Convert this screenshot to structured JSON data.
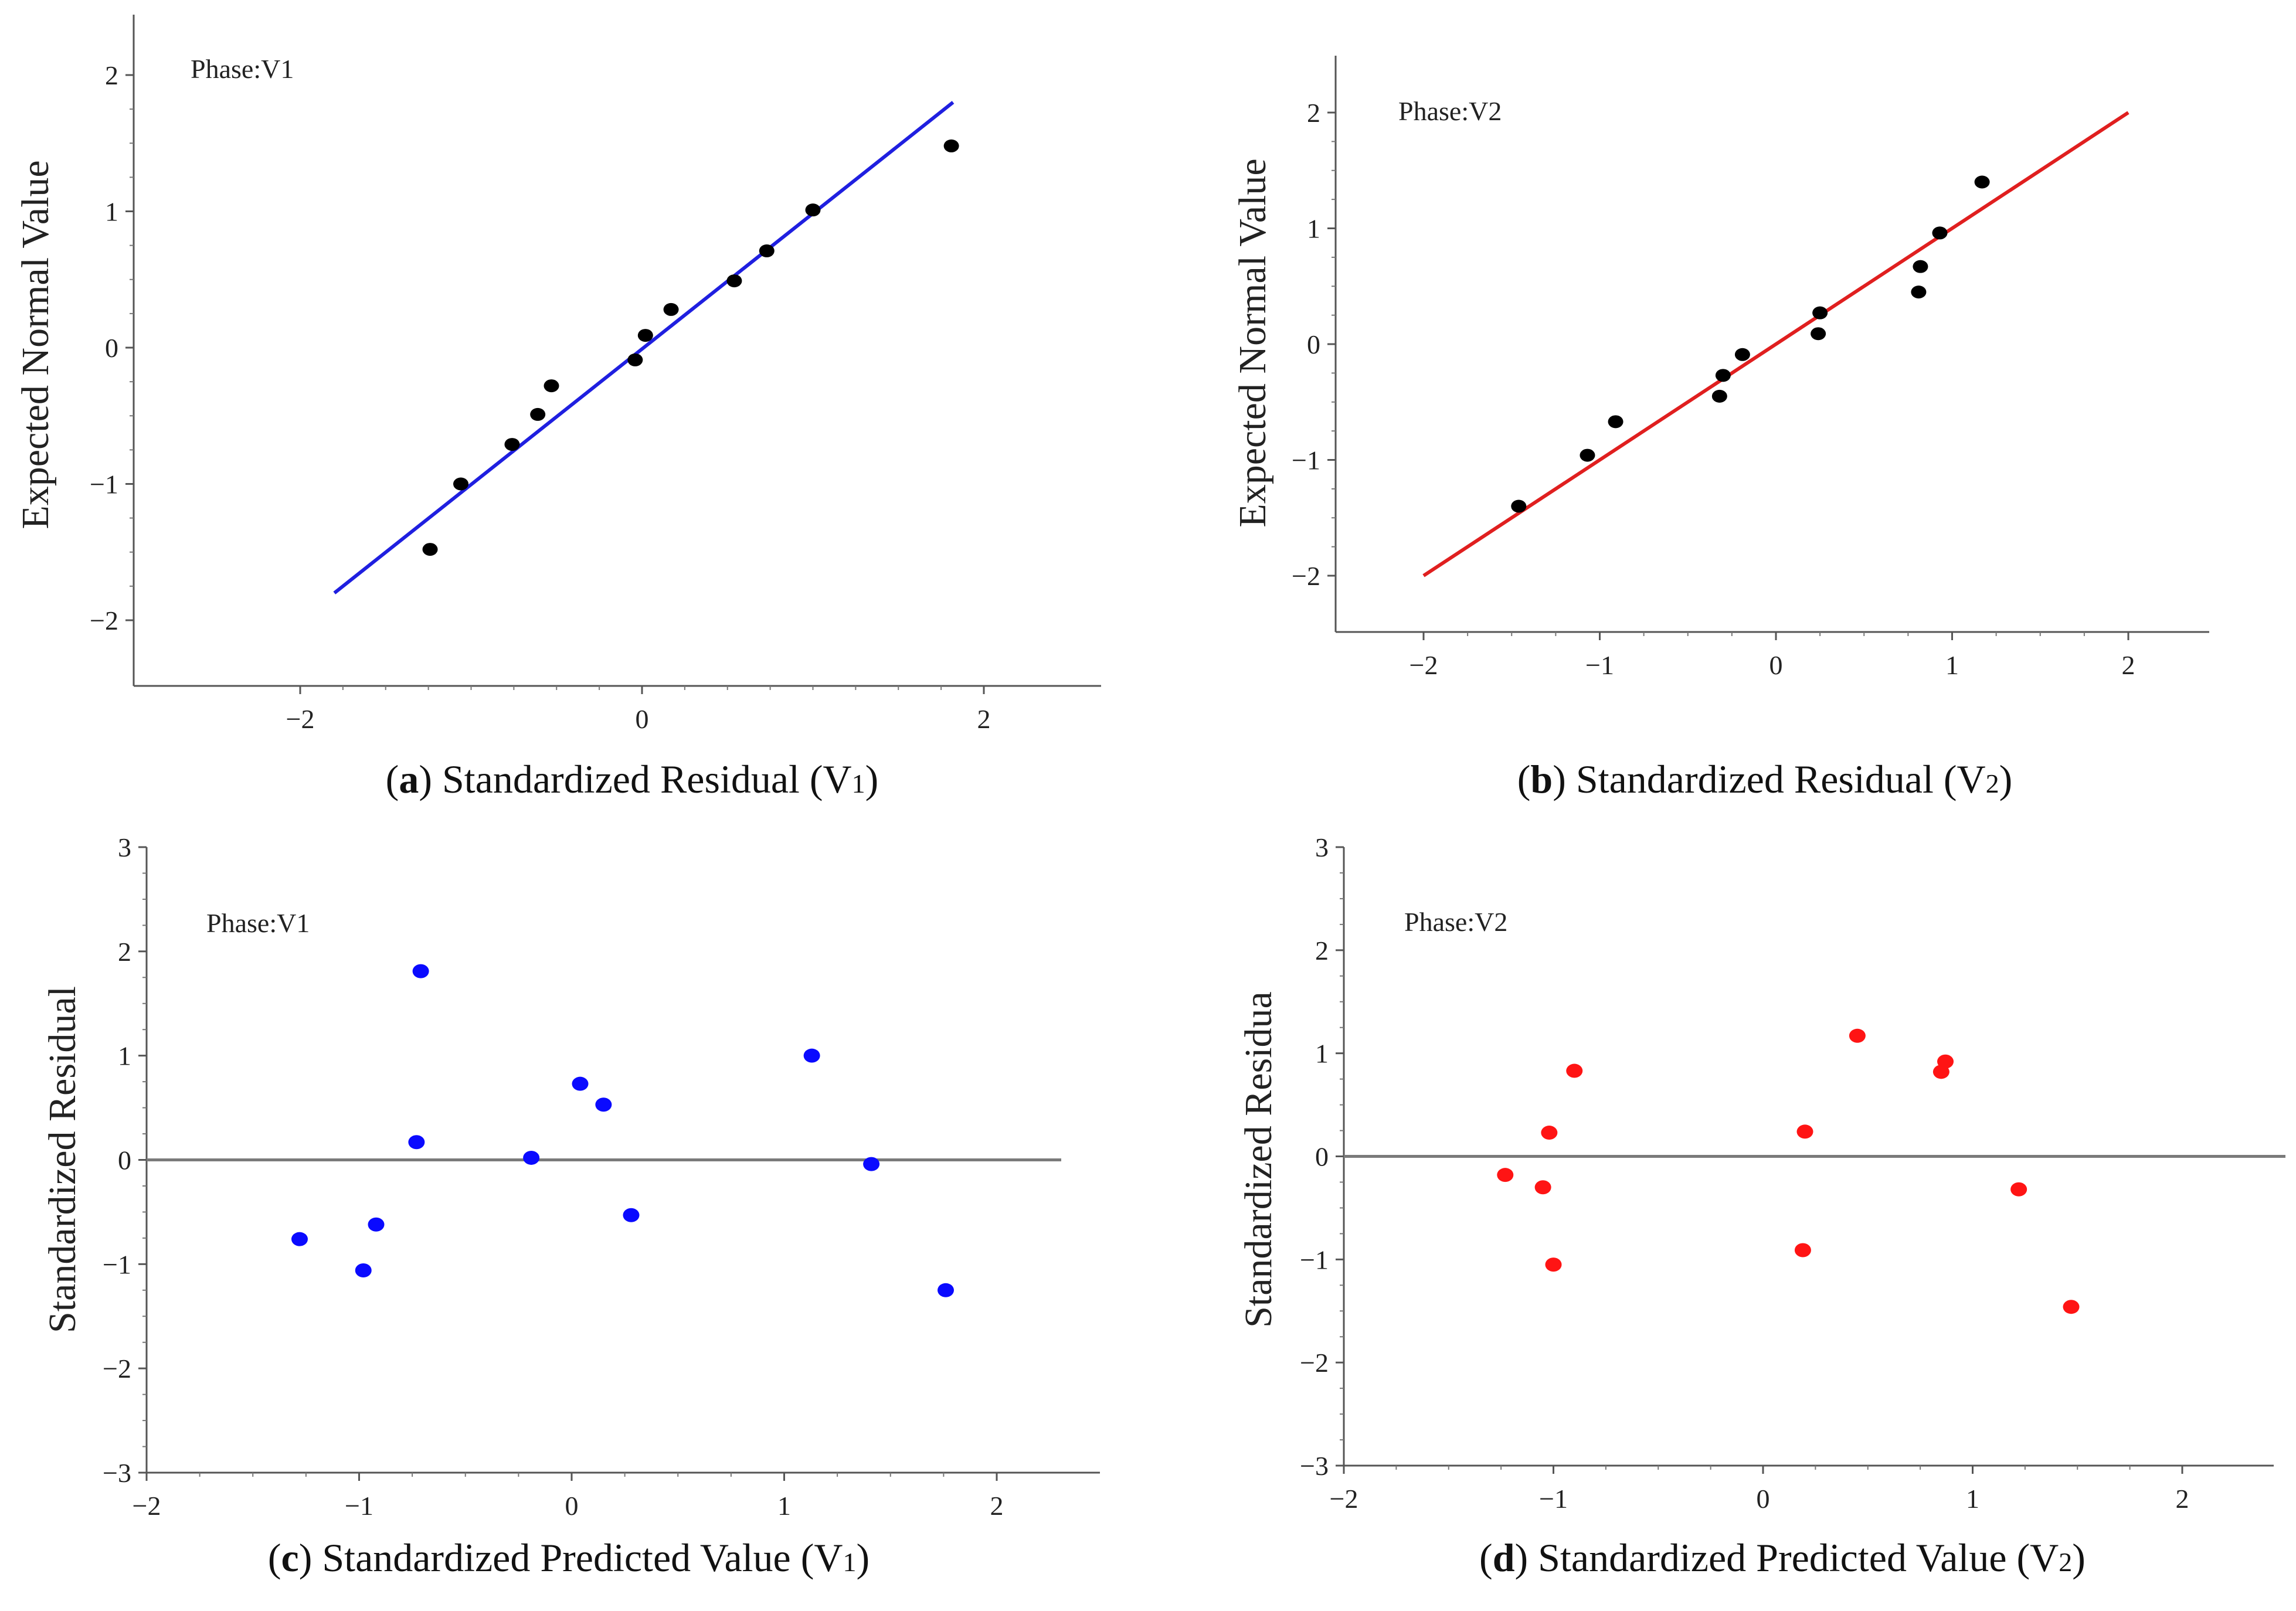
{
  "figure": {
    "panels_count": 4
  },
  "chart_data": [
    {
      "id": "a",
      "type": "scatter",
      "subtype": "normal-probability-plot",
      "annotation": "Phase:V1",
      "caption": {
        "letter": "a",
        "text": "Standardized Residual (V",
        "sub": "1",
        "close": ")"
      },
      "xlabel": "",
      "ylabel": "Expected Normal Value",
      "xlim": [
        -2.9,
        2.7
      ],
      "ylim": [
        -2.5,
        2.4
      ],
      "xticks": [
        -2,
        0,
        2
      ],
      "yticks": [
        -2,
        -1,
        0,
        1,
        2
      ],
      "point_color": "#000000",
      "line_color": "#1f1fe0",
      "fit_line": {
        "x": [
          -1.8,
          1.82
        ],
        "y": [
          -1.8,
          1.8
        ]
      },
      "series": [
        {
          "name": "residuals",
          "x": [
            -1.24,
            -1.06,
            -0.76,
            -0.61,
            -0.53,
            -0.04,
            0.02,
            0.17,
            0.54,
            0.73,
            1.0,
            1.81
          ],
          "y": [
            -1.48,
            -1.0,
            -0.71,
            -0.49,
            -0.28,
            -0.09,
            0.09,
            0.28,
            0.49,
            0.71,
            1.01,
            1.48
          ]
        }
      ]
    },
    {
      "id": "b",
      "type": "scatter",
      "subtype": "normal-probability-plot",
      "annotation": "Phase:V2",
      "caption": {
        "letter": "b",
        "text": "Standardized Residual (V",
        "sub": "2",
        "close": ")"
      },
      "xlabel": "",
      "ylabel": "Expected Normal Value",
      "xlim": [
        -2.5,
        2.5
      ],
      "ylim": [
        -2.5,
        2.5
      ],
      "xticks": [
        -2,
        -1,
        0,
        1,
        2
      ],
      "yticks": [
        -2,
        -1,
        0,
        1,
        2
      ],
      "point_color": "#000000",
      "line_color": "#e01f1f",
      "fit_line": {
        "x": [
          -2.0,
          2.0
        ],
        "y": [
          -2.0,
          2.0
        ]
      },
      "series": [
        {
          "name": "residuals",
          "x": [
            -1.46,
            -1.07,
            -0.91,
            -0.32,
            -0.3,
            -0.19,
            0.24,
            0.25,
            0.81,
            0.82,
            0.93,
            1.17
          ],
          "y": [
            -1.4,
            -0.96,
            -0.67,
            -0.45,
            -0.27,
            -0.09,
            0.09,
            0.27,
            0.45,
            0.67,
            0.96,
            1.4
          ]
        }
      ]
    },
    {
      "id": "c",
      "type": "scatter",
      "subtype": "residual-vs-predicted",
      "annotation": "Phase:V1",
      "caption": {
        "letter": "c",
        "text": "Standardized Predicted Value (V",
        "sub": "1",
        "close": ")"
      },
      "xlabel": "",
      "ylabel": "Standardized Residual",
      "xlim": [
        -2.0,
        2.5
      ],
      "ylim": [
        -3.0,
        3.0
      ],
      "xticks": [
        -2,
        -1,
        0,
        1,
        2
      ],
      "yticks": [
        -3,
        -2,
        -1,
        0,
        1,
        2,
        3
      ],
      "point_color": "#0a0aff",
      "reference_line": {
        "y": 0,
        "color": "#7a7a7a"
      },
      "series": [
        {
          "name": "residuals",
          "x": [
            -1.28,
            -0.98,
            -0.92,
            -0.73,
            -0.71,
            -0.19,
            0.04,
            0.15,
            0.28,
            1.13,
            1.41,
            1.76
          ],
          "y": [
            -0.76,
            -1.06,
            -0.62,
            0.17,
            1.81,
            0.02,
            0.73,
            0.53,
            -0.53,
            1.0,
            -0.04,
            -1.25
          ]
        }
      ]
    },
    {
      "id": "d",
      "type": "scatter",
      "subtype": "residual-vs-predicted",
      "annotation": "Phase:V2",
      "caption": {
        "letter": "d",
        "text": "Standardized Predicted Value (V",
        "sub": "2",
        "close": ")"
      },
      "xlabel": "",
      "ylabel": "Standardized Residua",
      "xlim": [
        -2.0,
        2.5
      ],
      "ylim": [
        -3.0,
        3.0
      ],
      "xticks": [
        -2,
        -1,
        0,
        1,
        2
      ],
      "yticks": [
        -3,
        -2,
        -1,
        0,
        1,
        2,
        3
      ],
      "point_color": "#ff1414",
      "reference_line": {
        "y": 0,
        "color": "#7a7a7a"
      },
      "series": [
        {
          "name": "residuals",
          "x": [
            -1.23,
            -1.05,
            -1.02,
            -1.0,
            -0.9,
            0.19,
            0.2,
            0.45,
            0.85,
            0.87,
            1.22,
            1.47
          ],
          "y": [
            -0.18,
            -0.3,
            0.23,
            -1.05,
            0.83,
            -0.91,
            0.24,
            1.17,
            0.82,
            0.92,
            -0.32,
            -1.46
          ]
        }
      ]
    }
  ]
}
